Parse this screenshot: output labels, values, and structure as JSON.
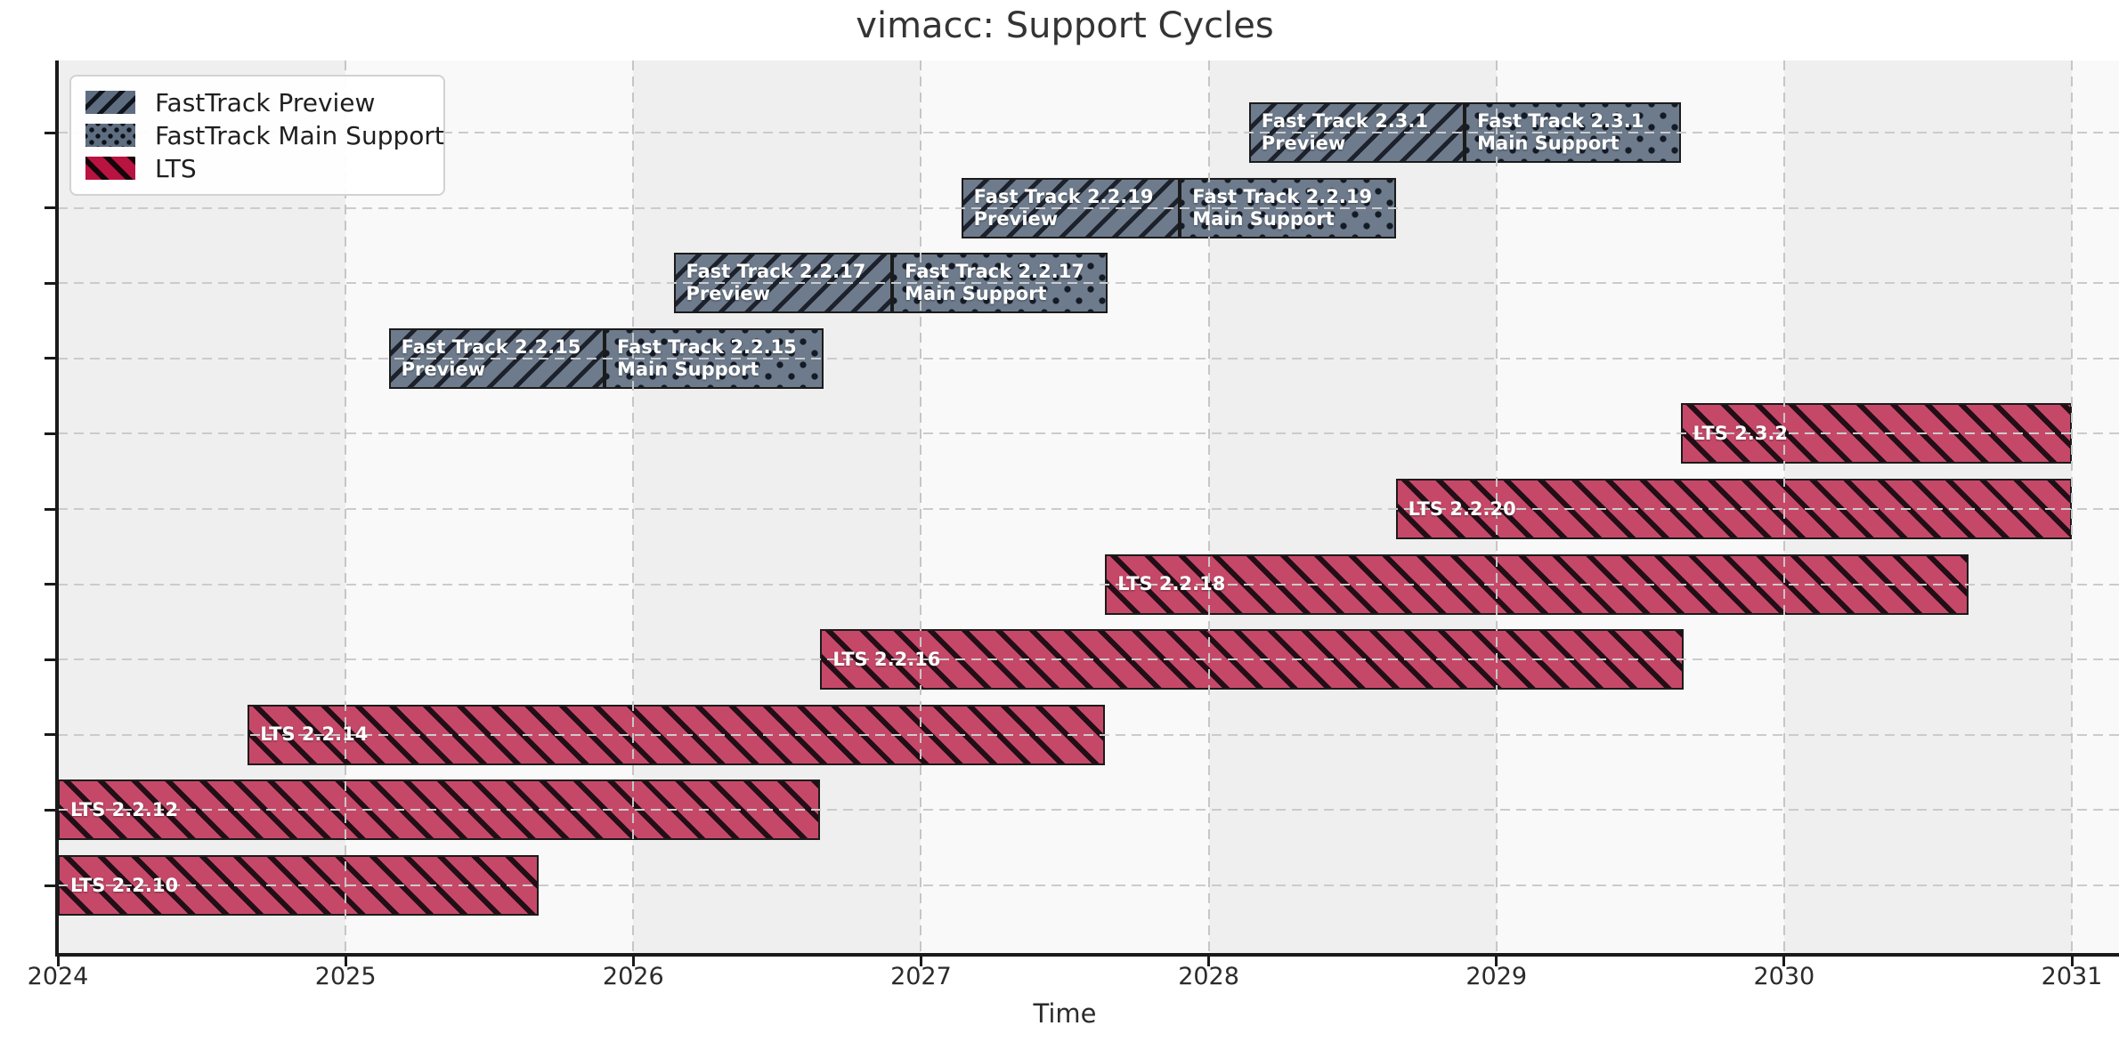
{
  "title": "vimacc: Support Cycles",
  "axis": {
    "xlabel": "Time",
    "x_ticks": [
      "2024",
      "2025",
      "2026",
      "2027",
      "2028",
      "2029",
      "2030",
      "2031"
    ]
  },
  "legend": {
    "items": [
      {
        "label": "FastTrack Preview",
        "style": "ft-preview"
      },
      {
        "label": "FastTrack Main Support",
        "style": "ft-main"
      },
      {
        "label": "LTS",
        "style": "lts"
      }
    ]
  },
  "colors": {
    "fasttrack_fill": "#6d7b8c",
    "lts_fill": "#c64868",
    "hatch": "#1b1b1b",
    "bar_border": "#1b1b1b",
    "band_gray": "#efefef",
    "band_light": "#f9f9f9",
    "grid": "#c9c9c9",
    "text": "#2b2b2b"
  },
  "chart_data": {
    "type": "gantt",
    "title": "vimacc: Support Cycles",
    "xlabel": "Time",
    "xlim": [
      2024,
      2031
    ],
    "grid": "dashed, drawn above bars",
    "legend_position": "upper left",
    "rows": [
      {
        "name": "Fast Track 2.3.1",
        "segments": [
          {
            "label_lines": [
              "Fast Track 2.3.1",
              "Preview"
            ],
            "start": 2028.14,
            "end": 2028.89,
            "style": "ft-preview"
          },
          {
            "label_lines": [
              "Fast Track 2.3.1",
              "Main Support"
            ],
            "start": 2028.89,
            "end": 2029.64,
            "style": "ft-main"
          }
        ]
      },
      {
        "name": "Fast Track 2.2.19",
        "segments": [
          {
            "label_lines": [
              "Fast Track 2.2.19",
              "Preview"
            ],
            "start": 2027.14,
            "end": 2027.9,
            "style": "ft-preview"
          },
          {
            "label_lines": [
              "Fast Track 2.2.19",
              "Main Support"
            ],
            "start": 2027.9,
            "end": 2028.65,
            "style": "ft-main"
          }
        ]
      },
      {
        "name": "Fast Track 2.2.17",
        "segments": [
          {
            "label_lines": [
              "Fast Track 2.2.17",
              "Preview"
            ],
            "start": 2026.14,
            "end": 2026.9,
            "style": "ft-preview"
          },
          {
            "label_lines": [
              "Fast Track 2.2.17",
              "Main Support"
            ],
            "start": 2026.9,
            "end": 2027.65,
            "style": "ft-main"
          }
        ]
      },
      {
        "name": "Fast Track 2.2.15",
        "segments": [
          {
            "label_lines": [
              "Fast Track 2.2.15",
              "Preview"
            ],
            "start": 2025.15,
            "end": 2025.9,
            "style": "ft-preview"
          },
          {
            "label_lines": [
              "Fast Track 2.2.15",
              "Main Support"
            ],
            "start": 2025.9,
            "end": 2026.66,
            "style": "ft-main"
          }
        ]
      },
      {
        "name": "LTS 2.3.2",
        "segments": [
          {
            "label_lines": [
              "LTS 2.3.2"
            ],
            "start": 2029.64,
            "end": 2031.0,
            "style": "lts",
            "clipped_right": true
          }
        ]
      },
      {
        "name": "LTS 2.2.20",
        "segments": [
          {
            "label_lines": [
              "LTS 2.2.20"
            ],
            "start": 2028.65,
            "end": 2031.0,
            "style": "lts",
            "clipped_right": true
          }
        ]
      },
      {
        "name": "LTS 2.2.18",
        "segments": [
          {
            "label_lines": [
              "LTS 2.2.18"
            ],
            "start": 2027.64,
            "end": 2030.64,
            "style": "lts"
          }
        ]
      },
      {
        "name": "LTS 2.2.16",
        "segments": [
          {
            "label_lines": [
              "LTS 2.2.16"
            ],
            "start": 2026.65,
            "end": 2029.65,
            "style": "lts"
          }
        ]
      },
      {
        "name": "LTS 2.2.14",
        "segments": [
          {
            "label_lines": [
              "LTS 2.2.14"
            ],
            "start": 2024.66,
            "end": 2027.64,
            "style": "lts"
          }
        ]
      },
      {
        "name": "LTS 2.2.12",
        "segments": [
          {
            "label_lines": [
              "LTS 2.2.12"
            ],
            "start": 2024.0,
            "end": 2026.65,
            "style": "lts",
            "clipped_left": true
          }
        ]
      },
      {
        "name": "LTS 2.2.10",
        "segments": [
          {
            "label_lines": [
              "LTS 2.2.10"
            ],
            "start": 2024.0,
            "end": 2025.67,
            "style": "lts",
            "clipped_left": true
          }
        ]
      }
    ]
  }
}
